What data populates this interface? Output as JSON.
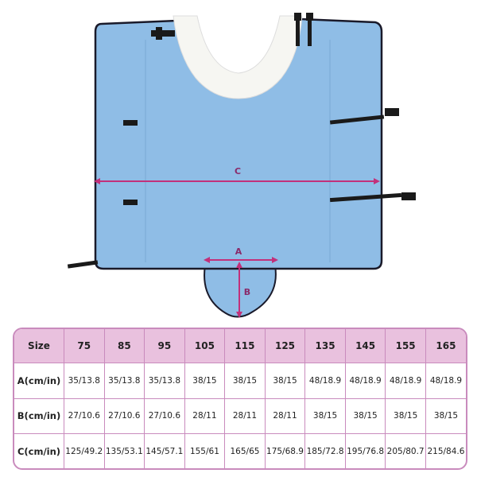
{
  "dimensions": {
    "a": "A",
    "b": "B",
    "c": "C"
  },
  "colors": {
    "fabric": "#8fbde6",
    "accent": "#c2307a",
    "header": "#e9c1de",
    "border": "#c98bbd"
  },
  "table": {
    "header": [
      "Size",
      "75",
      "85",
      "95",
      "105",
      "115",
      "125",
      "135",
      "145",
      "155",
      "165"
    ],
    "rows": [
      {
        "label": "A(cm/in)",
        "values": [
          "35/13.8",
          "35/13.8",
          "35/13.8",
          "38/15",
          "38/15",
          "38/15",
          "48/18.9",
          "48/18.9",
          "48/18.9",
          "48/18.9"
        ]
      },
      {
        "label": "B(cm/in)",
        "values": [
          "27/10.6",
          "27/10.6",
          "27/10.6",
          "28/11",
          "28/11",
          "28/11",
          "38/15",
          "38/15",
          "38/15",
          "38/15"
        ]
      },
      {
        "label": "C(cm/in)",
        "values": [
          "125/49.2",
          "135/53.1",
          "145/57.1",
          "155/61",
          "165/65",
          "175/68.9",
          "185/72.8",
          "195/76.8",
          "205/80.7",
          "215/84.6"
        ]
      }
    ]
  }
}
